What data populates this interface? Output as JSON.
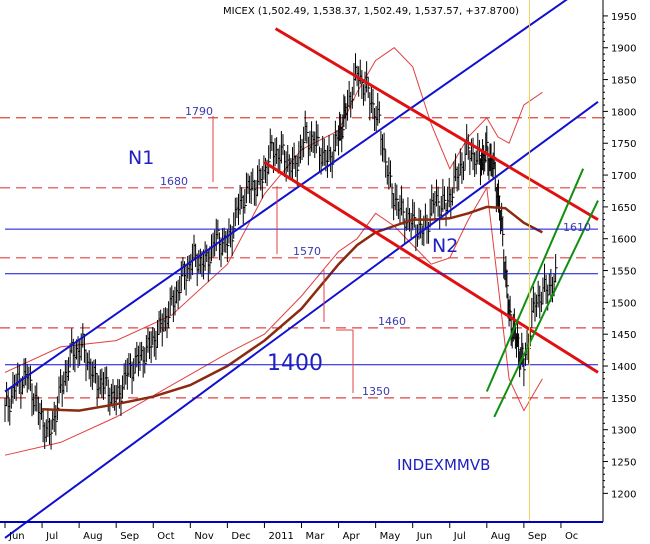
{
  "chart_data": {
    "type": "line",
    "title": "MICEX (1,502.49, 1,538.37, 1,502.49, 1,537.57, +37.8700)",
    "ticker": "INDEXMMVB",
    "xlabel": "",
    "ylabel": "",
    "x_ticks": [
      "Jun",
      "Jul",
      "Aug",
      "Sep",
      "Oct",
      "Nov",
      "Dec",
      "2011",
      "Mar",
      "Apr",
      "May",
      "Jun",
      "Jul",
      "Aug",
      "Sep",
      "Oc"
    ],
    "y_ticks": [
      1200,
      1250,
      1300,
      1350,
      1400,
      1450,
      1500,
      1550,
      1600,
      1650,
      1700,
      1750,
      1800,
      1850,
      1900,
      1950
    ],
    "ylim": [
      1155,
      1975
    ],
    "x_range_months": [
      0,
      16
    ],
    "grid": false,
    "price_series": {
      "name": "",
      "x": [
        0.0,
        0.3,
        0.6,
        0.9,
        1.2,
        1.5,
        1.8,
        2.1,
        2.4,
        2.7,
        3.0,
        3.3,
        3.6,
        3.9,
        4.2,
        4.5,
        4.8,
        5.1,
        5.4,
        5.7,
        6.0,
        6.3,
        6.6,
        6.9,
        7.2,
        7.5,
        7.8,
        8.1,
        8.4,
        8.7,
        9.0,
        9.2,
        9.5,
        9.8,
        10.1,
        10.4,
        10.7,
        11.0,
        11.3,
        11.6,
        11.9,
        12.2,
        12.5,
        12.8,
        13.0,
        13.2,
        13.4,
        13.6,
        13.8,
        14.0,
        14.3,
        14.6,
        14.9
      ],
      "close": [
        1330,
        1370,
        1385,
        1330,
        1290,
        1360,
        1420,
        1430,
        1380,
        1370,
        1345,
        1390,
        1410,
        1430,
        1460,
        1495,
        1540,
        1570,
        1560,
        1600,
        1590,
        1650,
        1680,
        1690,
        1740,
        1730,
        1710,
        1760,
        1750,
        1720,
        1760,
        1800,
        1860,
        1830,
        1780,
        1680,
        1640,
        1625,
        1610,
        1660,
        1650,
        1700,
        1740,
        1720,
        1735,
        1710,
        1620,
        1480,
        1440,
        1400,
        1500,
        1520,
        1537
      ]
    },
    "overlays": [
      {
        "name": "",
        "kind": "moving-average",
        "color": "#8b2a10",
        "x": [
          1.0,
          2.0,
          3.0,
          4.0,
          5.0,
          6.0,
          7.0,
          8.0,
          9.0,
          9.5,
          10.0,
          10.5,
          11.0,
          11.5,
          12.0,
          12.5,
          13.0,
          13.5,
          14.0,
          14.5
        ],
        "y": [
          1332,
          1330,
          1340,
          1352,
          1370,
          1400,
          1440,
          1490,
          1560,
          1590,
          1610,
          1620,
          1630,
          1630,
          1632,
          1640,
          1650,
          1648,
          1625,
          1610
        ]
      }
    ],
    "bands": [
      {
        "name": "",
        "color": "#e04040",
        "upper": {
          "x": [
            0.0,
            1.5,
            3.0,
            4.5,
            6.0,
            7.0,
            8.0,
            9.0,
            9.5,
            10.0,
            10.5,
            11.0,
            11.5,
            12.0,
            12.5,
            13.0,
            13.3,
            13.6,
            14.0,
            14.5
          ],
          "y": [
            1390,
            1430,
            1440,
            1480,
            1560,
            1670,
            1740,
            1770,
            1830,
            1880,
            1900,
            1870,
            1780,
            1710,
            1760,
            1790,
            1760,
            1750,
            1810,
            1830
          ]
        },
        "lower": {
          "x": [
            0.0,
            1.5,
            3.0,
            4.5,
            6.0,
            7.0,
            8.0,
            9.0,
            9.5,
            10.0,
            10.5,
            11.0,
            11.5,
            12.0,
            12.5,
            13.0,
            13.3,
            13.6,
            14.0,
            14.5
          ],
          "y": [
            1260,
            1280,
            1320,
            1370,
            1420,
            1450,
            1510,
            1580,
            1600,
            1640,
            1620,
            1590,
            1560,
            1570,
            1630,
            1680,
            1530,
            1380,
            1330,
            1380
          ]
        }
      }
    ],
    "trend_lines": [
      {
        "name": "N1",
        "color": "#1010d0",
        "width": 2,
        "x": [
          0.0,
          16.0
        ],
        "y": [
          1360,
          2010
        ]
      },
      {
        "name": "",
        "color": "#1010d0",
        "width": 2,
        "x": [
          0.0,
          16.0
        ],
        "y": [
          1130,
          1815
        ]
      },
      {
        "name": "",
        "color": "#e01010",
        "width": 3,
        "x": [
          7.3,
          16.0
        ],
        "y": [
          1930,
          1630
        ]
      },
      {
        "name": "N2",
        "color": "#e01010",
        "width": 3,
        "x": [
          7.0,
          16.0
        ],
        "y": [
          1720,
          1390
        ]
      },
      {
        "name": "",
        "color": "#109010",
        "width": 2,
        "x": [
          13.0,
          15.6
        ],
        "y": [
          1360,
          1710
        ]
      },
      {
        "name": "",
        "color": "#109010",
        "width": 2,
        "x": [
          13.2,
          16.0
        ],
        "y": [
          1320,
          1660
        ]
      },
      {
        "name": "",
        "color": "#1010d0",
        "width": 1,
        "x": [
          0.0,
          16.0
        ],
        "y": [
          1615,
          1615
        ]
      },
      {
        "name": "",
        "color": "#1010d0",
        "width": 1,
        "x": [
          0.0,
          16.0
        ],
        "y": [
          1545,
          1545
        ]
      },
      {
        "name": "",
        "color": "#1010d0",
        "width": 1,
        "x": [
          0.0,
          16.0
        ],
        "y": [
          1402,
          1402
        ]
      }
    ],
    "levels": [
      {
        "value": 1790,
        "label": "1790",
        "color": "#e04040"
      },
      {
        "value": 1680,
        "label": "1680",
        "color": "#e04040"
      },
      {
        "value": 1570,
        "label": "1570",
        "color": "#e04040"
      },
      {
        "value": 1460,
        "label": "1460",
        "color": "#e04040"
      },
      {
        "value": 1350,
        "label": "1350",
        "color": "#e04040"
      }
    ],
    "big_label": "1400",
    "channel_labels": [
      "N1",
      "N2"
    ],
    "side_label": "1610",
    "current_line_x": 14.15,
    "current_line_color": "#e8d060"
  }
}
